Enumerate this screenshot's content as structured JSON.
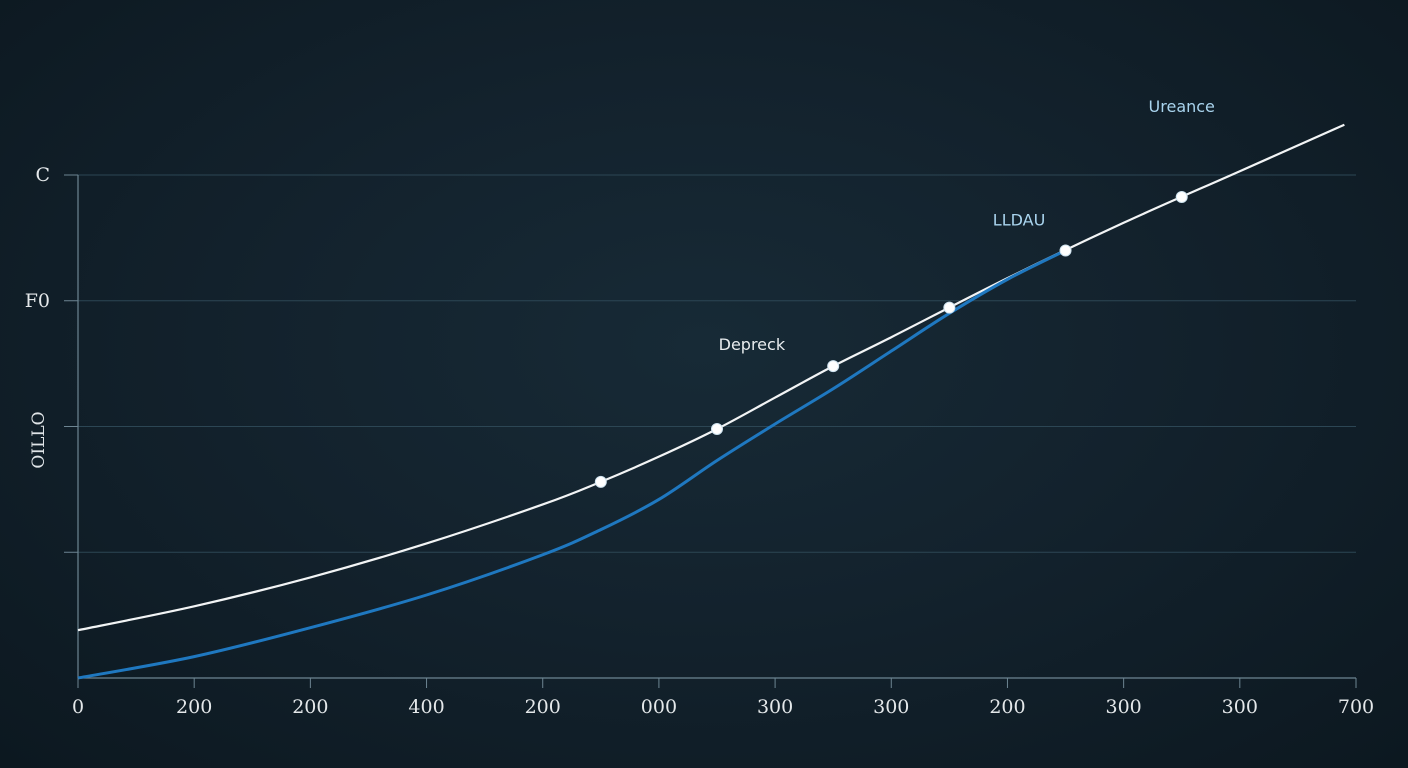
{
  "colors": {
    "background": "#13222d",
    "grid": "#2c4654",
    "axis": "#6d8592",
    "series_white": "#f2f4f5",
    "series_blue": "#1f78c0",
    "text": "#e4e8ea",
    "annotation_blue": "#a9d4ee"
  },
  "chart_data": {
    "type": "line",
    "title": "",
    "xlabel": "",
    "ylabel": "OILLO",
    "x_tick_labels": [
      "0",
      "200",
      "200",
      "400",
      "200",
      "000",
      "300",
      "300",
      "200",
      "300",
      "300",
      "700"
    ],
    "y_tick_labels": [
      "",
      "",
      "",
      "F0",
      "C"
    ],
    "xlim": [
      0,
      11
    ],
    "ylim": [
      0,
      4
    ],
    "grid": true,
    "series": [
      {
        "name": "white",
        "x": [
          0,
          1,
          2,
          3,
          4,
          4.5,
          5,
          5.5,
          6,
          6.5,
          7,
          8,
          9,
          10,
          10.9
        ],
        "values": [
          0.38,
          0.57,
          0.8,
          1.07,
          1.38,
          1.56,
          1.76,
          1.98,
          2.23,
          2.48,
          2.71,
          3.18,
          3.62,
          4.03,
          4.4
        ],
        "markers_x": [
          4.5,
          5.5,
          6.5,
          7.5,
          8.5,
          9.5
        ]
      },
      {
        "name": "blue",
        "x": [
          0,
          1,
          2,
          3,
          4,
          4.5,
          5,
          5.5,
          6,
          6.5,
          7,
          7.5,
          8,
          8.5
        ],
        "values": [
          0,
          0.17,
          0.4,
          0.66,
          0.98,
          1.18,
          1.42,
          1.73,
          2.02,
          2.3,
          2.6,
          2.9,
          3.17,
          3.4
        ]
      }
    ],
    "annotations": [
      {
        "text": "Depreck",
        "x": 5.8,
        "y": 2.61,
        "color": "white"
      },
      {
        "text": "LLDAU",
        "x": 8.1,
        "y": 3.6,
        "color": "blue"
      },
      {
        "text": "Ureance",
        "x": 9.5,
        "y": 4.5,
        "color": "blue"
      }
    ]
  }
}
